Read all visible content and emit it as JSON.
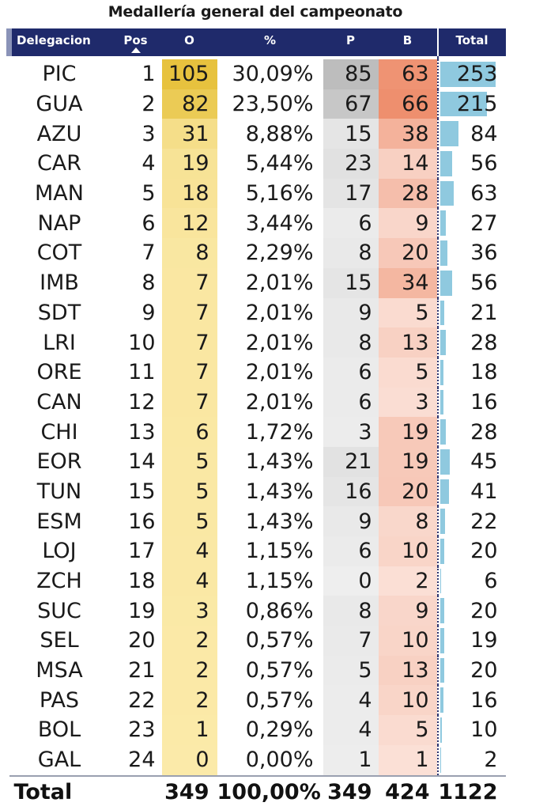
{
  "colors": {
    "header_bg": "#1f2a6b",
    "header_text": "#ffffff",
    "oro_min": "#fbeaa9",
    "oro_max": "#e7c23e",
    "plata_min": "#eeeeee",
    "plata_max": "#bdbdbd",
    "bronce_min": "#fbe1d8",
    "bronce_max": "#ee8f6e",
    "total_bar": "#8fc9df"
  },
  "chart_data": {
    "type": "table",
    "title": "Medallería general del campeonato",
    "columns": [
      "Delegacion",
      "Pos",
      "O",
      "%",
      "P",
      "B",
      "Total"
    ],
    "sort": {
      "column": "Pos",
      "direction": "ascending",
      "icon": "sort-ascending-icon"
    },
    "rows": [
      [
        "PIC",
        1,
        105,
        "30,09%",
        85,
        63,
        253
      ],
      [
        "GUA",
        2,
        82,
        "23,50%",
        67,
        66,
        215
      ],
      [
        "AZU",
        3,
        31,
        "8,88%",
        15,
        38,
        84
      ],
      [
        "CAR",
        4,
        19,
        "5,44%",
        23,
        14,
        56
      ],
      [
        "MAN",
        5,
        18,
        "5,16%",
        17,
        28,
        63
      ],
      [
        "NAP",
        6,
        12,
        "3,44%",
        6,
        9,
        27
      ],
      [
        "COT",
        7,
        8,
        "2,29%",
        8,
        20,
        36
      ],
      [
        "IMB",
        8,
        7,
        "2,01%",
        15,
        34,
        56
      ],
      [
        "SDT",
        9,
        7,
        "2,01%",
        9,
        5,
        21
      ],
      [
        "LRI",
        10,
        7,
        "2,01%",
        8,
        13,
        28
      ],
      [
        "ORE",
        11,
        7,
        "2,01%",
        6,
        5,
        18
      ],
      [
        "CAN",
        12,
        7,
        "2,01%",
        6,
        3,
        16
      ],
      [
        "CHI",
        13,
        6,
        "1,72%",
        3,
        19,
        28
      ],
      [
        "EOR",
        14,
        5,
        "1,43%",
        21,
        19,
        45
      ],
      [
        "TUN",
        15,
        5,
        "1,43%",
        16,
        20,
        41
      ],
      [
        "ESM",
        16,
        5,
        "1,43%",
        9,
        8,
        22
      ],
      [
        "LOJ",
        17,
        4,
        "1,15%",
        6,
        10,
        20
      ],
      [
        "ZCH",
        18,
        4,
        "1,15%",
        0,
        2,
        6
      ],
      [
        "SUC",
        19,
        3,
        "0,86%",
        8,
        9,
        20
      ],
      [
        "SEL",
        20,
        2,
        "0,57%",
        7,
        10,
        19
      ],
      [
        "MSA",
        21,
        2,
        "0,57%",
        5,
        13,
        20
      ],
      [
        "PAS",
        22,
        2,
        "0,57%",
        4,
        10,
        16
      ],
      [
        "BOL",
        23,
        1,
        "0,29%",
        4,
        5,
        10
      ],
      [
        "GAL",
        24,
        0,
        "0,00%",
        1,
        1,
        2
      ]
    ],
    "totals": {
      "label": "Total",
      "O": 349,
      "pct": "100,00%",
      "P": 349,
      "B": 424,
      "Total": 1122
    }
  }
}
